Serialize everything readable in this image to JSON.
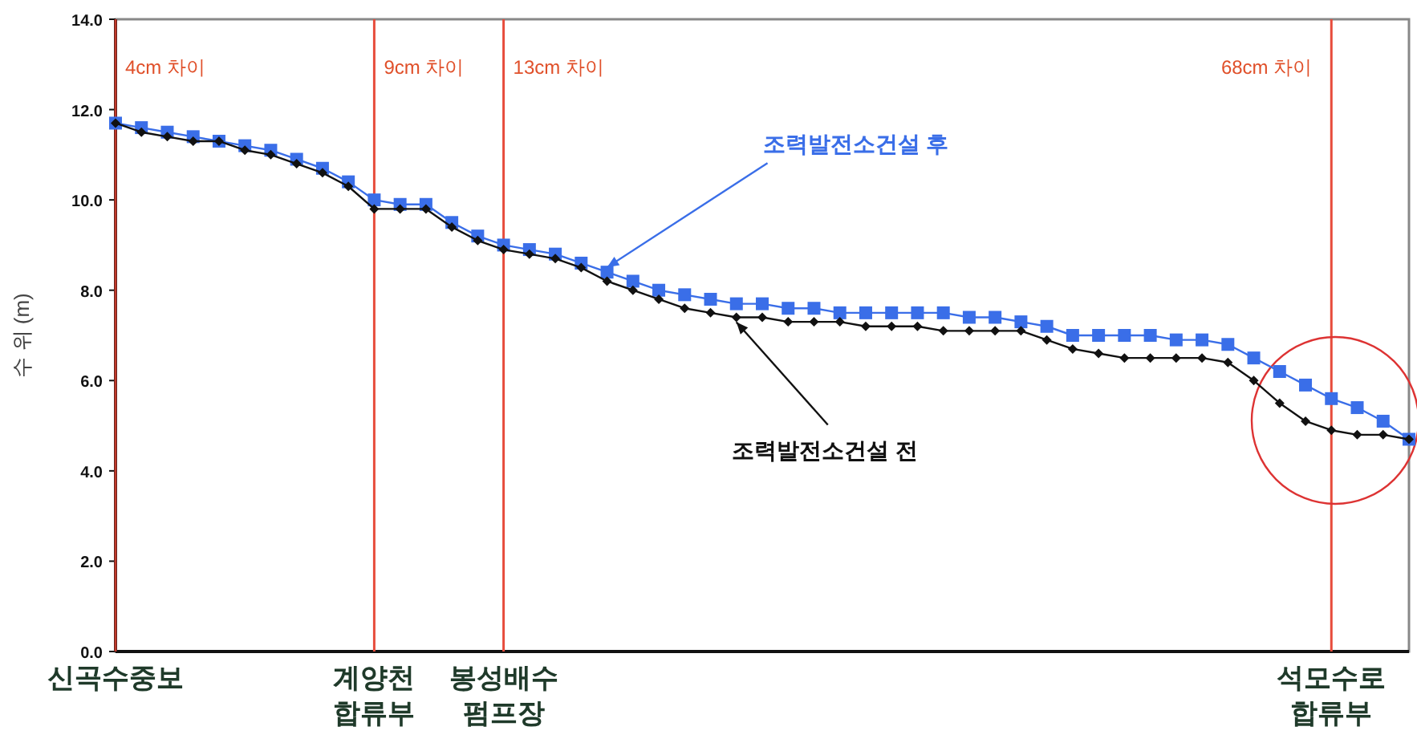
{
  "chart_data": {
    "type": "line",
    "ylabel": "수 위 (m)",
    "categories": [
      "신곡수중보",
      null,
      null,
      null,
      null,
      null,
      null,
      null,
      null,
      null,
      "계양천\n합류부",
      null,
      null,
      null,
      null,
      "봉성배수\n펌프장",
      null,
      null,
      null,
      null,
      null,
      null,
      null,
      null,
      null,
      null,
      null,
      null,
      null,
      null,
      null,
      null,
      null,
      null,
      null,
      null,
      null,
      null,
      null,
      null,
      null,
      null,
      null,
      null,
      null,
      null,
      null,
      "석모수로\n합류부",
      null,
      null,
      null
    ],
    "ylim": [
      0,
      14
    ],
    "yticks": [
      {
        "value": 0,
        "label": "0.0"
      },
      {
        "value": 2,
        "label": "2.0"
      },
      {
        "value": 4,
        "label": "4.0"
      },
      {
        "value": 6,
        "label": "6.0"
      },
      {
        "value": 8,
        "label": "8.0"
      },
      {
        "value": 10,
        "label": "10.0"
      },
      {
        "value": 12,
        "label": "12.0"
      },
      {
        "value": 14,
        "label": "14.0"
      }
    ],
    "legend": false,
    "series": [
      {
        "name": "조력발전소건설 후",
        "color": "#3a6ee8",
        "marker": "square",
        "values": [
          11.7,
          11.6,
          11.5,
          11.4,
          11.3,
          11.2,
          11.1,
          10.9,
          10.7,
          10.4,
          10.0,
          9.9,
          9.9,
          9.5,
          9.2,
          9.0,
          8.9,
          8.8,
          8.6,
          8.4,
          8.2,
          8.0,
          7.9,
          7.8,
          7.7,
          7.7,
          7.6,
          7.6,
          7.5,
          7.5,
          7.5,
          7.5,
          7.5,
          7.4,
          7.4,
          7.3,
          7.2,
          7.0,
          7.0,
          7.0,
          7.0,
          6.9,
          6.9,
          6.8,
          6.5,
          6.2,
          5.9,
          5.6,
          5.4,
          5.1,
          4.7
        ]
      },
      {
        "name": "조력발전소건설 전",
        "color": "#111111",
        "marker": "diamond",
        "values": [
          11.7,
          11.5,
          11.4,
          11.3,
          11.3,
          11.1,
          11.0,
          10.8,
          10.6,
          10.3,
          9.8,
          9.8,
          9.8,
          9.4,
          9.1,
          8.9,
          8.8,
          8.7,
          8.5,
          8.2,
          8.0,
          7.8,
          7.6,
          7.5,
          7.4,
          7.4,
          7.3,
          7.3,
          7.3,
          7.2,
          7.2,
          7.2,
          7.1,
          7.1,
          7.1,
          7.1,
          6.9,
          6.7,
          6.6,
          6.5,
          6.5,
          6.5,
          6.5,
          6.4,
          6.0,
          5.5,
          5.1,
          4.9,
          4.8,
          4.8,
          4.7
        ]
      }
    ],
    "ref_lines": [
      {
        "axis": "x",
        "value": "신곡수중보",
        "color": "#c0392b"
      },
      {
        "axis": "x",
        "value": "계양천\n합류부",
        "color": "#e74c3c"
      },
      {
        "axis": "x",
        "value": "봉성배수\n펌프장",
        "color": "#e74c3c"
      },
      {
        "axis": "x",
        "value": "석모수로\n합류부",
        "color": "#e74c3c"
      }
    ],
    "annotations": [
      "4cm 차이",
      "9cm 차이",
      "13cm 차이",
      "68cm 차이"
    ]
  }
}
